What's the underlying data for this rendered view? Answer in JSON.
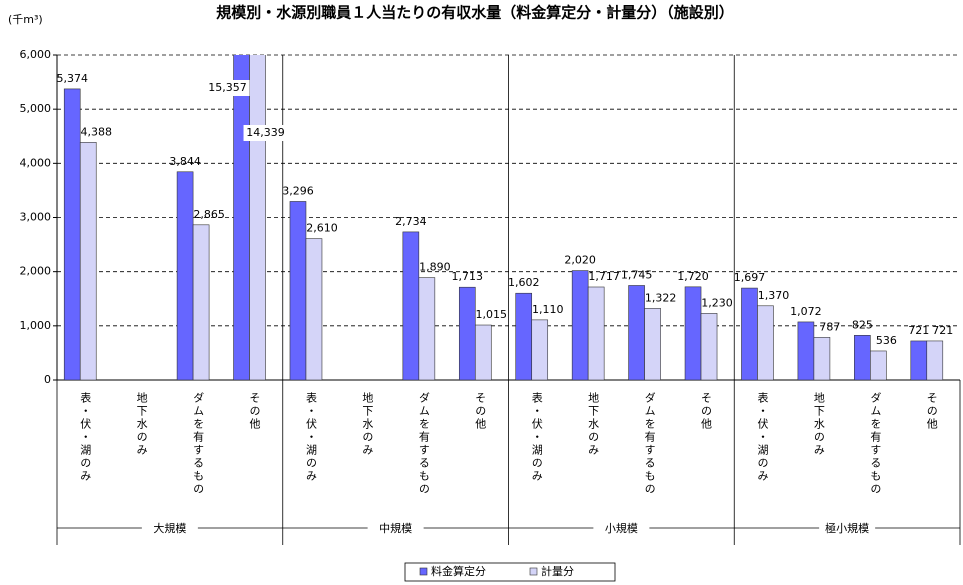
{
  "chart_data": {
    "type": "bar",
    "title": "規模別・水源別職員１人当たりの有収水量（料金算定分・計量分）（施設別）",
    "y_label": "(千m³)",
    "groups": [
      "大規模",
      "中規模",
      "小規模",
      "極小規模"
    ],
    "categories": [
      "表・伏・湖のみ",
      "地下水のみ",
      "ダムを有するもの",
      "その他",
      "表・伏・湖のみ",
      "地下水のみ",
      "ダムを有するもの",
      "その他",
      "表・伏・湖のみ",
      "地下水のみ",
      "ダムを有するもの",
      "その他",
      "表・伏・湖のみ",
      "地下水のみ",
      "ダムを有するもの",
      "その他"
    ],
    "series": [
      {
        "name": "料金算定分",
        "color": "#6666ff",
        "values": [
          5374,
          null,
          3844,
          15357,
          3296,
          null,
          2734,
          1713,
          1602,
          2020,
          1745,
          1720,
          1697,
          1072,
          825,
          721
        ],
        "value_labels": [
          "5,374",
          null,
          "3,844",
          "15,357",
          "3,296",
          null,
          "2,734",
          "1,713",
          "1,602",
          "2,020",
          "1,745",
          "1,720",
          "1,697",
          "1,072",
          "825",
          "721"
        ]
      },
      {
        "name": "計量分",
        "color": "#d4d4f8",
        "values": [
          4388,
          null,
          2865,
          14339,
          2610,
          null,
          1890,
          1015,
          1110,
          1717,
          1322,
          1230,
          1370,
          787,
          536,
          721
        ],
        "value_labels": [
          "4,388",
          null,
          "2,865",
          "14,339",
          "2,610",
          null,
          "1,890",
          "1,015",
          "1,110",
          "1,717",
          "1,322",
          "1,230",
          "1,370",
          "787",
          "536",
          "721"
        ]
      }
    ],
    "ylim": [
      0,
      6000
    ],
    "yticks": [
      {
        "value": 0,
        "label": "0"
      },
      {
        "value": 1000,
        "label": "1,000"
      },
      {
        "value": 2000,
        "label": "2,000"
      },
      {
        "value": 3000,
        "label": "3,000"
      },
      {
        "value": 4000,
        "label": "4,000"
      },
      {
        "value": 5000,
        "label": "5,000"
      },
      {
        "value": 6000,
        "label": "6,000"
      }
    ],
    "grid": true,
    "legend": "bottom"
  }
}
